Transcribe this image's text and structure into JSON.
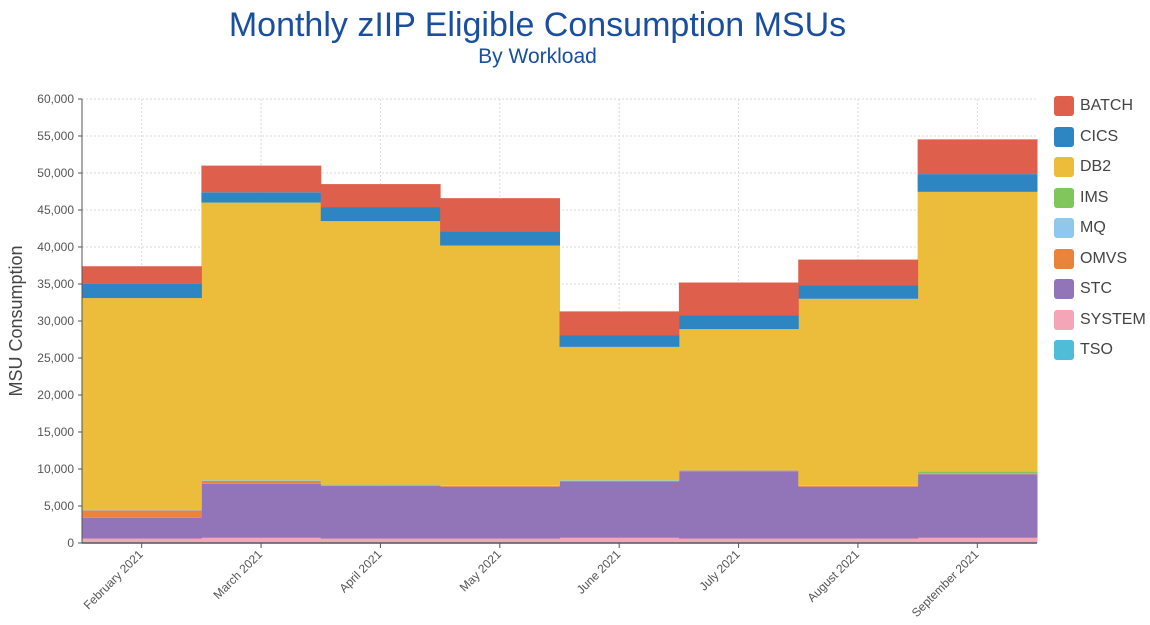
{
  "chart_data": {
    "type": "area",
    "subtype": "stacked-step",
    "title": "Monthly zIIP Eligible Consumption MSUs",
    "subtitle": "By Workload",
    "xlabel": "",
    "ylabel": "MSU Consumption",
    "ylim": [
      0,
      60000
    ],
    "yticks": [
      "0",
      "5,000",
      "10,000",
      "15,000",
      "20,000",
      "25,000",
      "30,000",
      "35,000",
      "40,000",
      "45,000",
      "50,000",
      "55,000",
      "60,000"
    ],
    "grid": true,
    "legend_position": "right",
    "categories": [
      "February 2021",
      "March 2021",
      "April 2021",
      "May 2021",
      "June 2021",
      "July 2021",
      "August 2021",
      "September 2021"
    ],
    "series": [
      {
        "name": "TSO",
        "color": "#4fbcd8",
        "values": [
          100,
          100,
          100,
          100,
          100,
          100,
          100,
          100
        ]
      },
      {
        "name": "SYSTEM",
        "color": "#f4a6b6",
        "values": [
          500,
          600,
          500,
          500,
          600,
          500,
          500,
          600
        ]
      },
      {
        "name": "STC",
        "color": "#9275b9",
        "values": [
          2800,
          7300,
          7100,
          7000,
          7600,
          9100,
          7000,
          8600
        ]
      },
      {
        "name": "OMVS",
        "color": "#e8843c",
        "values": [
          1000,
          400,
          100,
          100,
          100,
          100,
          100,
          100
        ]
      },
      {
        "name": "MQ",
        "color": "#8fc8ec",
        "values": [
          50,
          50,
          50,
          50,
          50,
          50,
          50,
          50
        ]
      },
      {
        "name": "IMS",
        "color": "#80c65c",
        "values": [
          50,
          50,
          50,
          50,
          50,
          50,
          50,
          200
        ]
      },
      {
        "name": "DB2",
        "color": "#ecbd3a",
        "values": [
          28600,
          37500,
          35600,
          32400,
          18000,
          19000,
          25200,
          37800
        ]
      },
      {
        "name": "CICS",
        "color": "#2d86c2",
        "values": [
          2000,
          1400,
          1900,
          1900,
          1600,
          1900,
          1800,
          2400
        ]
      },
      {
        "name": "BATCH",
        "color": "#de5f4b",
        "values": [
          2300,
          3600,
          3100,
          4500,
          3200,
          4400,
          3500,
          4700
        ]
      }
    ],
    "legend_order": [
      "BATCH",
      "CICS",
      "DB2",
      "IMS",
      "MQ",
      "OMVS",
      "STC",
      "SYSTEM",
      "TSO"
    ]
  }
}
